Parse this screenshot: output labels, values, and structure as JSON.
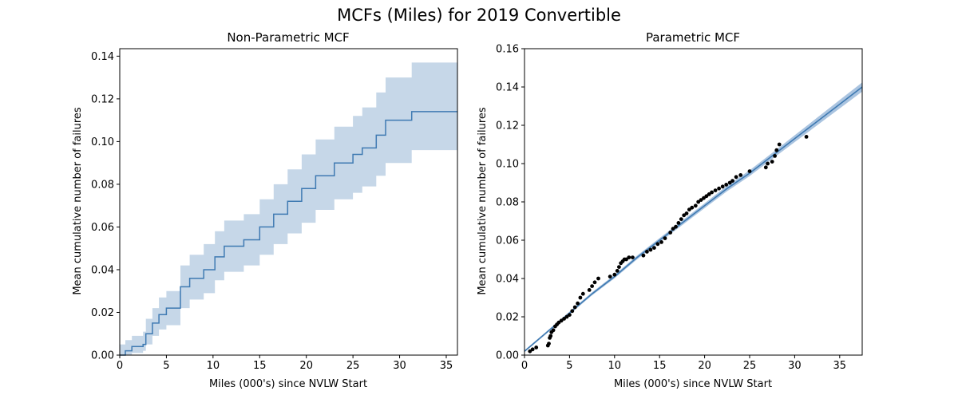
{
  "figure": {
    "title": "MCFs (Miles) for 2019 Convertible"
  },
  "colors": {
    "line": "#3f7ab2",
    "band": "#c6d7e8",
    "band_parametric": "#aac4e0",
    "points": "#000000"
  },
  "chart_data": [
    {
      "type": "line",
      "subtype": "step-with-confidence-band",
      "title": "Non-Parametric MCF",
      "xlabel": "Miles (000's) since NVLW Start",
      "ylabel": "Mean cumulative number of failures",
      "xlim": [
        0,
        36.2
      ],
      "ylim": [
        0,
        0.1435
      ],
      "xticks": [
        0,
        5,
        10,
        15,
        20,
        25,
        30,
        35
      ],
      "xtick_labels": [
        "0",
        "5",
        "10",
        "15",
        "20",
        "25",
        "30",
        "35"
      ],
      "yticks": [
        0,
        0.02,
        0.04,
        0.06,
        0.08,
        0.1,
        0.12,
        0.14
      ],
      "ytick_labels": [
        "0.00",
        "0.02",
        "0.04",
        "0.06",
        "0.08",
        "0.10",
        "0.12",
        "0.14"
      ],
      "grid": false,
      "series": [
        {
          "x": [
            0,
            0.6,
            1.3,
            2.5,
            2.8,
            3.5,
            4.2,
            5.0,
            6.5,
            7.5,
            9.0,
            10.2,
            11.2,
            13.3,
            15.0,
            16.5,
            18.0,
            19.5,
            21.0,
            23.0,
            25.0,
            26.0,
            27.5,
            28.5,
            31.3,
            36.2
          ],
          "y": [
            0,
            0.002,
            0.004,
            0.005,
            0.01,
            0.015,
            0.019,
            0.022,
            0.032,
            0.036,
            0.04,
            0.046,
            0.051,
            0.054,
            0.06,
            0.066,
            0.072,
            0.078,
            0.084,
            0.09,
            0.094,
            0.097,
            0.103,
            0.11,
            0.114,
            0.114
          ],
          "lower": [
            0,
            0.0,
            0.001,
            0.002,
            0.005,
            0.009,
            0.012,
            0.014,
            0.022,
            0.026,
            0.029,
            0.035,
            0.039,
            0.042,
            0.047,
            0.052,
            0.057,
            0.062,
            0.068,
            0.073,
            0.076,
            0.079,
            0.084,
            0.09,
            0.096,
            0.096
          ],
          "upper": [
            0.005,
            0.007,
            0.009,
            0.011,
            0.017,
            0.022,
            0.027,
            0.03,
            0.042,
            0.047,
            0.052,
            0.058,
            0.063,
            0.066,
            0.073,
            0.08,
            0.087,
            0.094,
            0.101,
            0.107,
            0.112,
            0.116,
            0.123,
            0.13,
            0.137,
            0.137
          ]
        }
      ]
    },
    {
      "type": "scatter",
      "subtype": "scatter-with-fit-line",
      "title": "Parametric MCF",
      "xlabel": "Miles (000's) since NVLW Start",
      "ylabel": "Mean cumulative number of failures",
      "xlim": [
        0,
        37.5
      ],
      "ylim": [
        0,
        0.16
      ],
      "xticks": [
        0,
        5,
        10,
        15,
        20,
        25,
        30,
        35
      ],
      "xtick_labels": [
        "0",
        "5",
        "10",
        "15",
        "20",
        "25",
        "30",
        "35"
      ],
      "yticks": [
        0,
        0.02,
        0.04,
        0.06,
        0.08,
        0.1,
        0.12,
        0.14,
        0.16
      ],
      "ytick_labels": [
        "0.00",
        "0.02",
        "0.04",
        "0.06",
        "0.08",
        "0.10",
        "0.12",
        "0.14",
        "0.16"
      ],
      "grid": false,
      "fit": {
        "x": [
          0,
          2.5,
          5,
          7.5,
          10,
          12.5,
          15,
          17.5,
          20,
          22.5,
          25,
          27.5,
          30,
          32.5,
          35,
          37.5
        ],
        "y": [
          0.002,
          0.012,
          0.022,
          0.032,
          0.041,
          0.051,
          0.06,
          0.069,
          0.078,
          0.087,
          0.095,
          0.104,
          0.113,
          0.122,
          0.131,
          0.14
        ],
        "band_halfwidth": [
          0.0005,
          0.0006,
          0.0007,
          0.0008,
          0.0009,
          0.001,
          0.0011,
          0.0012,
          0.0013,
          0.0014,
          0.0015,
          0.0016,
          0.0018,
          0.002,
          0.0022,
          0.0024
        ]
      },
      "points": {
        "x": [
          0.6,
          0.9,
          1.3,
          2.6,
          2.7,
          2.8,
          2.9,
          3.0,
          3.2,
          3.4,
          3.6,
          3.8,
          4.1,
          4.4,
          4.7,
          5.0,
          5.3,
          5.6,
          5.9,
          6.2,
          6.5,
          7.2,
          7.5,
          7.8,
          8.2,
          9.5,
          10.0,
          10.3,
          10.5,
          10.7,
          10.9,
          11.1,
          11.3,
          11.6,
          12.0,
          13.2,
          13.6,
          14.0,
          14.4,
          14.8,
          15.2,
          15.6,
          16.2,
          16.5,
          16.8,
          17.1,
          17.4,
          17.7,
          18.0,
          18.3,
          18.6,
          19.0,
          19.3,
          19.6,
          19.9,
          20.2,
          20.5,
          20.8,
          21.2,
          21.6,
          22.0,
          22.4,
          22.8,
          23.1,
          23.5,
          24.0,
          25.0,
          26.8,
          27.0,
          27.5,
          27.8,
          28.0,
          28.3,
          31.3
        ],
        "y": [
          0.002,
          0.003,
          0.004,
          0.005,
          0.006,
          0.009,
          0.01,
          0.012,
          0.013,
          0.015,
          0.016,
          0.017,
          0.018,
          0.019,
          0.02,
          0.021,
          0.023,
          0.025,
          0.027,
          0.03,
          0.032,
          0.034,
          0.036,
          0.038,
          0.04,
          0.041,
          0.042,
          0.044,
          0.046,
          0.048,
          0.049,
          0.05,
          0.05,
          0.051,
          0.051,
          0.052,
          0.054,
          0.055,
          0.056,
          0.058,
          0.059,
          0.061,
          0.064,
          0.066,
          0.067,
          0.069,
          0.071,
          0.073,
          0.074,
          0.076,
          0.077,
          0.078,
          0.08,
          0.081,
          0.082,
          0.083,
          0.084,
          0.085,
          0.086,
          0.087,
          0.088,
          0.089,
          0.09,
          0.091,
          0.093,
          0.094,
          0.096,
          0.098,
          0.1,
          0.101,
          0.104,
          0.107,
          0.11,
          0.114
        ]
      }
    }
  ]
}
